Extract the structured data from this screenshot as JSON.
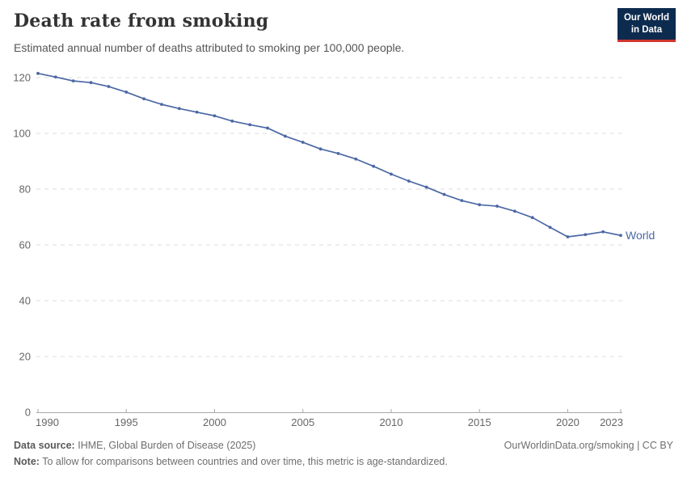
{
  "header": {
    "title": "Death rate from smoking",
    "subtitle": "Estimated annual number of deaths attributed to smoking per 100,000 people.",
    "logo": {
      "line1": "Our World",
      "line2": "in Data",
      "bg_color": "#0d2b4e",
      "accent_color": "#d0342c"
    }
  },
  "chart_data": {
    "type": "line",
    "title": "Death rate from smoking",
    "xlabel": "",
    "ylabel": "",
    "x": [
      1990,
      1991,
      1992,
      1993,
      1994,
      1995,
      1996,
      1997,
      1998,
      1999,
      2000,
      2001,
      2002,
      2003,
      2004,
      2005,
      2006,
      2007,
      2008,
      2009,
      2010,
      2011,
      2012,
      2013,
      2014,
      2015,
      2016,
      2017,
      2018,
      2019,
      2020,
      2021,
      2022,
      2023
    ],
    "series": [
      {
        "name": "World",
        "color": "#4c68a4",
        "values": [
          121.5,
          120.2,
          118.8,
          118.2,
          116.8,
          114.8,
          112.4,
          110.4,
          108.9,
          107.6,
          106.3,
          104.4,
          103.1,
          101.9,
          99.0,
          96.8,
          94.4,
          92.8,
          90.8,
          88.2,
          85.4,
          82.9,
          80.7,
          78.1,
          75.9,
          74.4,
          73.9,
          72.1,
          69.8,
          66.3,
          62.9,
          63.7,
          64.7,
          63.4
        ]
      }
    ],
    "xticks": [
      1990,
      1995,
      2000,
      2005,
      2010,
      2015,
      2020,
      2023
    ],
    "yticks": [
      0,
      20,
      40,
      60,
      80,
      100,
      120
    ],
    "xlim": [
      1990,
      2023
    ],
    "ylim": [
      0,
      120
    ],
    "grid": "horizontal-dashed",
    "grid_color": "#dddddd",
    "axis_color": "#a8a8a8",
    "tick_label_color": "#666666",
    "legend_position": "end-of-line-label"
  },
  "footer": {
    "source_label": "Data source:",
    "source_text": "IHME, Global Burden of Disease (2025)",
    "note_label": "Note:",
    "note_text": "To allow for comparisons between countries and over time, this metric is age-standardized.",
    "link": "OurWorldinData.org/smoking | CC BY"
  }
}
